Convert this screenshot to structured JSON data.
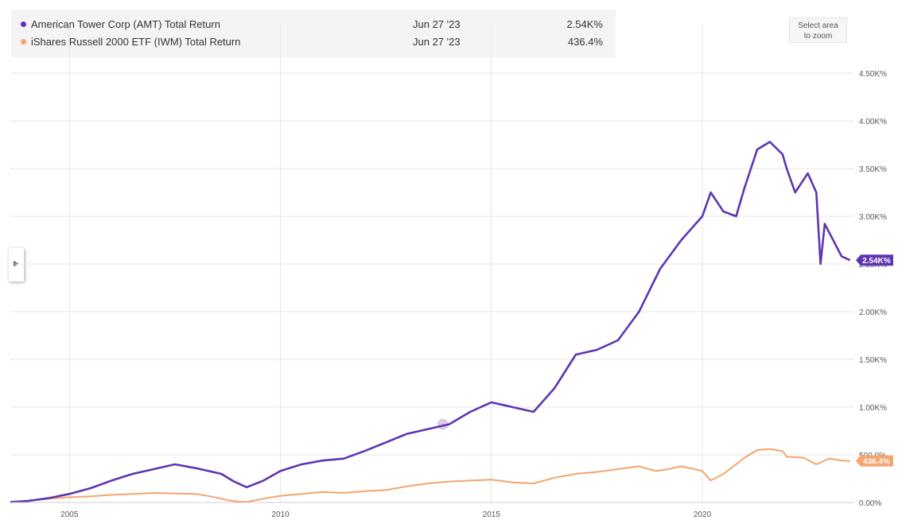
{
  "legend": [
    {
      "name": "American Tower Corp (AMT) Total Return",
      "date": "Jun 27 '23",
      "value": "2.54K%",
      "color": "#5e35b1"
    },
    {
      "name": "iShares Russell 2000 ETF (IWM) Total Return",
      "date": "Jun 27 '23",
      "value": "436.4%",
      "color": "#f4a46e"
    }
  ],
  "zoom_button": {
    "line1": "Select area",
    "line2": "to zoom"
  },
  "chart_data": {
    "type": "line",
    "x_ticks": [
      "2005",
      "2010",
      "2015",
      "2020"
    ],
    "y_ticks": [
      "0.00%",
      "500.0%",
      "1.00K%",
      "1.50K%",
      "2.00K%",
      "2.50K%",
      "3.00K%",
      "3.50K%",
      "4.00K%",
      "4.50K%"
    ],
    "ylim": [
      0,
      4500
    ],
    "xlim": [
      2003.6,
      2023.6
    ],
    "end_labels": [
      "2.54K%",
      "436.4%"
    ],
    "series": [
      {
        "name": "American Tower Corp (AMT) Total Return",
        "color": "#5e35b1",
        "x": [
          2003.6,
          2004.0,
          2004.5,
          2005.0,
          2005.5,
          2006.0,
          2006.5,
          2007.0,
          2007.5,
          2008.0,
          2008.3,
          2008.6,
          2008.9,
          2009.2,
          2009.6,
          2010.0,
          2010.5,
          2011.0,
          2011.5,
          2012.0,
          2012.5,
          2013.0,
          2013.5,
          2014.0,
          2014.5,
          2015.0,
          2015.5,
          2016.0,
          2016.5,
          2017.0,
          2017.5,
          2018.0,
          2018.5,
          2019.0,
          2019.5,
          2020.0,
          2020.2,
          2020.5,
          2020.8,
          2021.0,
          2021.3,
          2021.6,
          2021.9,
          2022.0,
          2022.2,
          2022.5,
          2022.7,
          2022.8,
          2022.9,
          2023.1,
          2023.3,
          2023.5
        ],
        "values": [
          5,
          15,
          45,
          90,
          150,
          230,
          300,
          350,
          400,
          360,
          330,
          300,
          220,
          160,
          230,
          330,
          400,
          440,
          460,
          540,
          630,
          720,
          770,
          820,
          950,
          1050,
          1000,
          950,
          1200,
          1550,
          1600,
          1700,
          2000,
          2450,
          2750,
          3000,
          3250,
          3050,
          3000,
          3300,
          3700,
          3780,
          3650,
          3500,
          3250,
          3450,
          3250,
          2500,
          2920,
          2750,
          2580,
          2540
        ]
      },
      {
        "name": "iShares Russell 2000 ETF (IWM) Total Return",
        "color": "#f4a46e",
        "x": [
          2003.6,
          2004.0,
          2004.5,
          2005.0,
          2005.5,
          2006.0,
          2006.5,
          2007.0,
          2007.5,
          2008.0,
          2008.4,
          2008.8,
          2009.0,
          2009.2,
          2009.6,
          2010.0,
          2010.5,
          2011.0,
          2011.5,
          2012.0,
          2012.5,
          2013.0,
          2013.5,
          2014.0,
          2014.5,
          2015.0,
          2015.5,
          2016.0,
          2016.5,
          2017.0,
          2017.5,
          2018.0,
          2018.5,
          2018.9,
          2019.2,
          2019.5,
          2020.0,
          2020.2,
          2020.5,
          2020.8,
          2021.0,
          2021.3,
          2021.6,
          2021.9,
          2022.0,
          2022.4,
          2022.7,
          2023.0,
          2023.3,
          2023.5
        ],
        "values": [
          5,
          20,
          40,
          55,
          65,
          80,
          90,
          100,
          95,
          90,
          60,
          20,
          10,
          5,
          40,
          70,
          90,
          110,
          100,
          120,
          130,
          170,
          200,
          220,
          230,
          240,
          210,
          200,
          260,
          300,
          320,
          350,
          380,
          330,
          350,
          380,
          330,
          230,
          300,
          400,
          470,
          550,
          560,
          540,
          480,
          470,
          400,
          460,
          440,
          436
        ]
      }
    ]
  }
}
